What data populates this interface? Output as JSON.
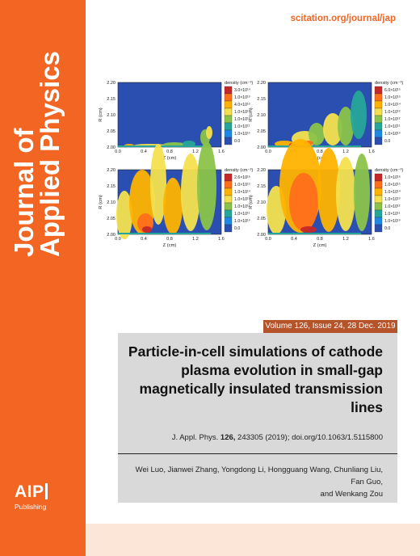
{
  "journal": {
    "title_line1": "Journal of",
    "title_line2": "Applied Physics",
    "url": "scitation.org/journal/jap"
  },
  "publisher": {
    "logo_text": "AIP",
    "name": "Publishing"
  },
  "issue": {
    "volume_line": "Volume 126, Issue 24, 28 Dec. 2019"
  },
  "article": {
    "title": "Particle-in-cell simulations of cathode plasma evolution in small-gap magnetically insulated transmission lines",
    "citation_prefix": "J. Appl. Phys.",
    "citation_volume": "126,",
    "citation_suffix": "243305 (2019); doi.org/10.1063/1.5115800",
    "authors_line1": "Wei Luo, Jianwei Zhang, Yongdong Li, Hongguang Wang, Chunliang Liu, Fan Guo,",
    "authors_line2": "and Wenkang Zou"
  },
  "colors": {
    "brand_orange": "#f26522",
    "volume_bar": "#b5532b",
    "abstract_bg": "#d9d9d9",
    "plot_background": "#2b4fb0"
  },
  "figure": {
    "x_axis_title": "Z (cm)",
    "y_axis_title": "R (cm)",
    "x_ticks": [
      "0.0",
      "0.4",
      "0.8",
      "1.2",
      "1.6"
    ],
    "y_ticks": [
      "2.20",
      "2.15",
      "2.10",
      "2.05",
      "2.00"
    ],
    "legend_title": "density (cm⁻³)",
    "legend_colors": [
      "#c62828",
      "#ff6f1a",
      "#ffb300",
      "#f4e04d",
      "#8bc34a",
      "#26a69a",
      "#1e88e5",
      "#2b4fb0"
    ],
    "panels": [
      {
        "legend_labels": [
          "3.0×10¹⁴",
          "1.0×10¹³",
          "4.0×10¹³",
          "1.0×10¹³",
          "1.0×10¹²",
          "1.0×10¹¹",
          "1.0×10¹⁰",
          "0.0"
        ]
      },
      {
        "legend_labels": [
          "6.0×10¹⁵",
          "1.0×10¹⁵",
          "1.0×10¹⁴",
          "1.0×10¹³",
          "1.0×10¹²",
          "1.0×10¹¹",
          "1.0×10¹⁰",
          "0.0"
        ]
      },
      {
        "legend_labels": [
          "2.6×10¹⁶",
          "1.0×10¹⁵",
          "1.0×10¹⁴",
          "1.0×10¹³",
          "1.0×10¹²",
          "1.0×10¹¹",
          "1.0×10¹⁰",
          "0.0"
        ]
      },
      {
        "legend_labels": [
          "1.0×10¹⁶",
          "1.0×10¹⁵",
          "1.0×10¹⁴",
          "1.0×10¹³",
          "1.0×10¹²",
          "1.0×10¹¹",
          "1.0×10¹⁰",
          "0.0"
        ]
      }
    ]
  }
}
